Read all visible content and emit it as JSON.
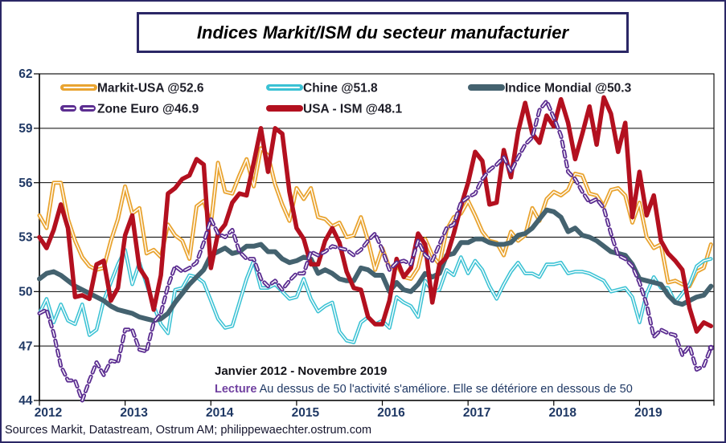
{
  "frame": {
    "border_color": "#2b2766"
  },
  "title": "Indices Markit/ISM du secteur manufacturier",
  "annotations": {
    "subtitle": "Janvier 2012 - Novembre 2019",
    "lecture_label": "Lecture",
    "lecture_text": " Au dessus de 50 l'activité s'améliore. Elle se détériore en dessous de 50",
    "source": "Sources Markit, Datastream,  Ostrum AM; philippewaechter.ostrum.com"
  },
  "chart_data": {
    "type": "line",
    "title": "Indices Markit/ISM du secteur manufacturier",
    "period": "Janvier 2012 - Novembre 2019",
    "x_unit": "month",
    "x_start": "2012-01",
    "x_end": "2019-11",
    "x_tick_labels": [
      "2012",
      "2013",
      "2014",
      "2015",
      "2016",
      "2017",
      "2018",
      "2019"
    ],
    "ylim": [
      44,
      62
    ],
    "yticks": [
      44,
      47,
      50,
      53,
      56,
      59,
      62
    ],
    "grid": true,
    "grid_color": "#000000",
    "axis_label_color": "#1f3864",
    "legend_position": "top-left-inside",
    "legend_text_color": "#1d1d27",
    "series": [
      {
        "name": "Markit-USA @52.6",
        "last_value": 52.6,
        "color": "#e9a431",
        "style": "solid-whitecore",
        "width": 5,
        "legend_row": 0,
        "legend_col": 0,
        "values": [
          54.2,
          53.5,
          56.0,
          56.0,
          54.0,
          52.8,
          51.9,
          51.4,
          51.2,
          51.3,
          52.8,
          54.0,
          55.8,
          54.3,
          54.6,
          52.1,
          52.3,
          51.9,
          53.7,
          53.1,
          52.8,
          51.8,
          54.7,
          55.0,
          53.7,
          57.1,
          55.5,
          55.4,
          56.4,
          57.3,
          55.8,
          57.9,
          57.5,
          55.9,
          54.8,
          53.9,
          55.7,
          55.1,
          55.7,
          54.1,
          54.0,
          53.6,
          53.8,
          53.0,
          53.1,
          54.1,
          52.8,
          51.2,
          52.4,
          51.3,
          51.5,
          50.8,
          50.7,
          51.3,
          52.9,
          52.0,
          51.5,
          53.4,
          54.1,
          54.3,
          55.0,
          54.2,
          53.3,
          52.8,
          52.7,
          52.0,
          53.3,
          52.8,
          53.1,
          54.6,
          53.9,
          55.1,
          55.5,
          55.3,
          55.6,
          56.5,
          56.4,
          55.4,
          55.3,
          54.7,
          55.6,
          55.7,
          55.3,
          53.8,
          54.9,
          53.0,
          52.4,
          52.6,
          50.5,
          50.6,
          50.4,
          50.3,
          51.1,
          51.3,
          52.6
        ]
      },
      {
        "name": "Chine @51.8",
        "last_value": 51.8,
        "color": "#3bc2d4",
        "style": "solid-whitecore",
        "width": 4.5,
        "legend_row": 0,
        "legend_col": 1,
        "values": [
          48.8,
          49.6,
          48.3,
          49.3,
          48.4,
          48.2,
          49.3,
          47.6,
          47.9,
          49.5,
          50.5,
          51.5,
          52.3,
          50.4,
          51.6,
          50.4,
          49.2,
          48.2,
          47.7,
          50.1,
          50.2,
          50.9,
          50.8,
          50.5,
          49.5,
          48.5,
          48.0,
          48.1,
          49.4,
          50.7,
          51.7,
          50.2,
          50.2,
          50.4,
          50.0,
          49.6,
          49.7,
          50.7,
          49.6,
          48.9,
          49.2,
          49.4,
          47.8,
          47.3,
          47.2,
          48.3,
          48.6,
          48.2,
          48.4,
          48.0,
          49.7,
          49.4,
          49.2,
          48.6,
          50.6,
          50.0,
          50.1,
          51.2,
          50.9,
          51.9,
          51.0,
          51.7,
          51.2,
          50.3,
          49.6,
          50.4,
          51.1,
          51.6,
          51.0,
          51.0,
          50.8,
          51.5,
          51.5,
          51.6,
          51.0,
          51.1,
          51.1,
          51.0,
          50.8,
          50.6,
          50.0,
          50.1,
          50.2,
          49.7,
          48.3,
          49.9,
          50.8,
          50.2,
          50.2,
          49.4,
          49.9,
          50.4,
          51.4,
          51.7,
          51.8
        ]
      },
      {
        "name": "Indice Mondial @50.3",
        "last_value": 50.3,
        "color": "#44626f",
        "style": "solid",
        "width": 6,
        "legend_row": 0,
        "legend_col": 2,
        "values": [
          50.7,
          51.0,
          51.1,
          50.9,
          50.6,
          50.3,
          50.1,
          49.9,
          49.7,
          49.5,
          49.2,
          49.0,
          48.9,
          48.8,
          48.6,
          48.5,
          48.4,
          48.5,
          48.8,
          49.4,
          49.9,
          50.4,
          50.8,
          51.2,
          52.0,
          52.2,
          52.4,
          52.1,
          52.2,
          52.5,
          52.5,
          52.6,
          52.2,
          52.2,
          51.8,
          51.6,
          51.7,
          51.9,
          51.8,
          51.0,
          51.2,
          51.0,
          50.7,
          50.6,
          50.6,
          51.3,
          51.2,
          50.9,
          50.9,
          50.0,
          50.5,
          50.1,
          50.0,
          50.4,
          51.0,
          50.8,
          51.0,
          52.0,
          52.1,
          52.7,
          52.7,
          52.9,
          52.9,
          52.7,
          52.6,
          52.6,
          52.7,
          53.1,
          53.2,
          53.5,
          54.0,
          54.5,
          54.4,
          54.1,
          53.3,
          53.5,
          53.1,
          53.0,
          52.8,
          52.5,
          52.2,
          52.1,
          52.0,
          51.5,
          50.7,
          50.6,
          50.5,
          50.4,
          49.8,
          49.4,
          49.3,
          49.5,
          49.7,
          49.8,
          50.3
        ]
      },
      {
        "name": "USA - ISM @48.1",
        "last_value": 48.1,
        "color": "#b3101f",
        "style": "solid",
        "width": 5.5,
        "legend_row": 1,
        "legend_col": 1,
        "values": [
          53.0,
          52.4,
          53.4,
          54.8,
          53.5,
          49.7,
          49.8,
          49.6,
          51.5,
          51.7,
          49.5,
          50.2,
          53.1,
          54.2,
          51.3,
          50.7,
          49.0,
          50.9,
          55.4,
          55.7,
          56.2,
          56.4,
          57.3,
          57.0,
          51.3,
          53.2,
          53.7,
          54.9,
          55.4,
          55.3,
          57.1,
          59.0,
          56.6,
          59.0,
          58.7,
          55.5,
          53.5,
          52.9,
          51.5,
          51.5,
          52.8,
          53.5,
          52.7,
          51.1,
          50.2,
          50.1,
          48.6,
          48.2,
          48.2,
          49.5,
          51.8,
          50.8,
          51.3,
          53.2,
          52.6,
          49.4,
          51.5,
          51.9,
          53.2,
          54.7,
          56.0,
          57.7,
          57.2,
          54.8,
          54.9,
          57.8,
          56.3,
          58.8,
          60.4,
          58.7,
          58.2,
          59.7,
          59.1,
          60.6,
          59.3,
          57.3,
          58.7,
          60.2,
          58.1,
          60.7,
          59.8,
          57.7,
          59.3,
          54.1,
          56.6,
          54.2,
          55.3,
          52.8,
          52.1,
          51.7,
          51.2,
          49.1,
          47.8,
          48.3,
          48.1
        ]
      },
      {
        "name": "Zone Euro @46.9",
        "last_value": 46.9,
        "color": "#5c2e91",
        "style": "dashed-whitecore",
        "width": 5,
        "end_dot": true,
        "legend_row": 1,
        "legend_col": 0,
        "values": [
          48.8,
          49.0,
          47.7,
          45.9,
          45.1,
          45.1,
          44.0,
          45.1,
          46.1,
          45.4,
          46.2,
          46.1,
          47.9,
          47.9,
          46.8,
          46.7,
          48.3,
          48.8,
          50.3,
          51.4,
          51.1,
          51.3,
          51.6,
          52.7,
          54.0,
          53.2,
          53.0,
          53.4,
          52.2,
          51.8,
          51.8,
          50.7,
          50.3,
          50.6,
          50.1,
          50.6,
          51.0,
          51.0,
          52.2,
          52.0,
          52.2,
          52.5,
          52.4,
          52.3,
          52.0,
          52.3,
          52.8,
          53.2,
          52.3,
          51.2,
          51.6,
          51.7,
          51.5,
          52.8,
          52.0,
          51.7,
          52.6,
          53.5,
          53.7,
          54.9,
          55.2,
          55.4,
          56.2,
          56.7,
          57.0,
          57.4,
          56.6,
          57.4,
          58.1,
          58.5,
          60.0,
          60.5,
          59.6,
          58.6,
          56.6,
          56.2,
          55.5,
          54.9,
          55.1,
          54.6,
          53.2,
          52.0,
          51.8,
          51.4,
          50.5,
          49.3,
          47.5,
          47.9,
          47.7,
          47.6,
          46.5,
          47.0,
          45.7,
          45.9,
          46.9
        ]
      }
    ]
  }
}
